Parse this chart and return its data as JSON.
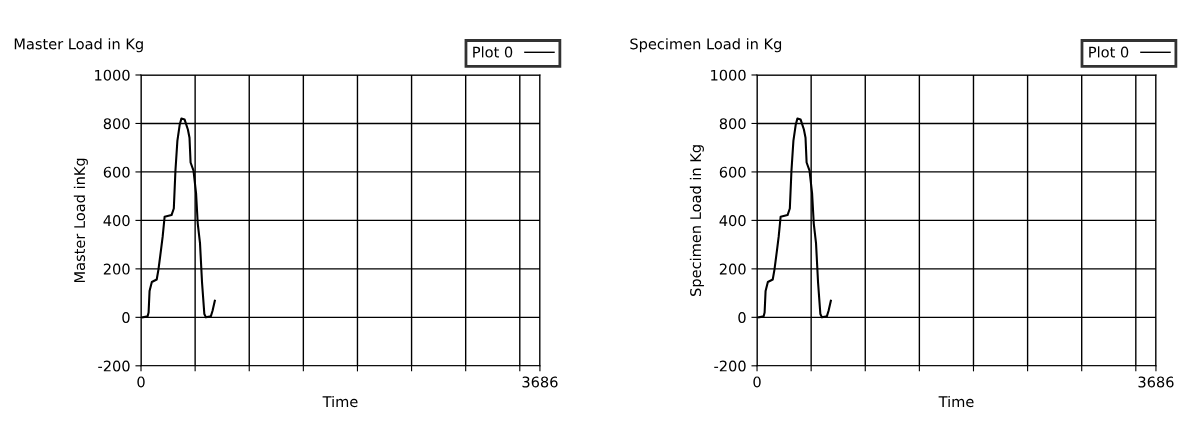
{
  "chart_data": [
    {
      "type": "line",
      "title": "Master Load in Kg",
      "xlabel": "Time",
      "ylabel": "Master Load inKg",
      "x": [
        18,
        61,
        70,
        79,
        100,
        145,
        161,
        185,
        200,
        218,
        282,
        303,
        318,
        336,
        358,
        373,
        403,
        433,
        448,
        458,
        485,
        509,
        524,
        545,
        564,
        585,
        600,
        645,
        661,
        682
      ],
      "series": [
        {
          "name": "Plot 0",
          "color": "#000000",
          "values": [
            0,
            4,
            20,
            109,
            146,
            156,
            197,
            279,
            333,
            415,
            422,
            449,
            605,
            728,
            796,
            820,
            816,
            775,
            741,
            639,
            605,
            510,
            388,
            306,
            143,
            14,
            0,
            4,
            27,
            68
          ]
        }
      ],
      "xlim": [
        0,
        3686
      ],
      "xticks": [
        0,
        {
          "value": 500,
          "label": null
        },
        {
          "value": 1000,
          "label": null
        },
        {
          "value": 1500,
          "label": null
        },
        {
          "value": 2000,
          "label": null
        },
        {
          "value": 2500,
          "label": null
        },
        {
          "value": 3000,
          "label": null
        },
        {
          "value": 3500,
          "label": null
        },
        3686
      ],
      "ylim": [
        -200,
        1000
      ],
      "yticks": [
        -200,
        0,
        200,
        400,
        600,
        800,
        1000
      ],
      "grid": true,
      "legend": "top right"
    },
    {
      "type": "line",
      "title": "Specimen Load in Kg",
      "xlabel": "Time",
      "ylabel": "Specimen Load in Kg",
      "x": [
        18,
        61,
        70,
        79,
        100,
        145,
        161,
        185,
        200,
        218,
        282,
        303,
        318,
        336,
        358,
        373,
        403,
        433,
        448,
        458,
        485,
        509,
        524,
        545,
        564,
        585,
        600,
        645,
        661,
        682
      ],
      "series": [
        {
          "name": "Plot 0",
          "color": "#000000",
          "values": [
            0,
            4,
            20,
            109,
            146,
            156,
            197,
            279,
            333,
            415,
            422,
            449,
            605,
            728,
            796,
            820,
            816,
            775,
            741,
            639,
            605,
            510,
            388,
            306,
            143,
            14,
            0,
            4,
            27,
            68
          ]
        }
      ],
      "xlim": [
        0,
        3686
      ],
      "xticks": [
        0,
        {
          "value": 500,
          "label": null
        },
        {
          "value": 1000,
          "label": null
        },
        {
          "value": 1500,
          "label": null
        },
        {
          "value": 2000,
          "label": null
        },
        {
          "value": 2500,
          "label": null
        },
        {
          "value": 3000,
          "label": null
        },
        {
          "value": 3500,
          "label": null
        },
        3686
      ],
      "ylim": [
        -200,
        1000
      ],
      "yticks": [
        -200,
        0,
        200,
        400,
        600,
        800,
        1000
      ],
      "grid": true,
      "legend": "top right"
    }
  ]
}
